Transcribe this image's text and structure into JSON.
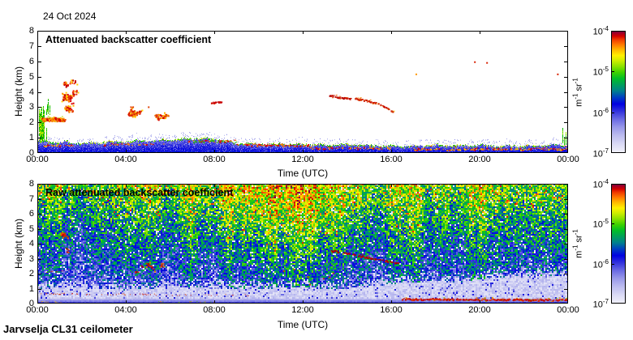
{
  "header": {
    "date_label": "24 Oct 2024"
  },
  "footer": {
    "instrument_label": "Jarvselja CL31 ceilometer"
  },
  "colorbar": {
    "unit_segments": [
      {
        "text": "m"
      },
      {
        "sup": "-1"
      },
      {
        "text": " sr"
      },
      {
        "sup": "-1"
      }
    ],
    "ticks": [
      {
        "base": "10",
        "exp": "-4"
      },
      {
        "base": "10",
        "exp": "-5"
      },
      {
        "base": "10",
        "exp": "-6"
      },
      {
        "base": "10",
        "exp": "-7"
      }
    ],
    "stops": [
      [
        0.0,
        "#F2F2FA"
      ],
      [
        0.07,
        "#DADAF5"
      ],
      [
        0.14,
        "#BCBCEF"
      ],
      [
        0.21,
        "#9898E9"
      ],
      [
        0.28,
        "#6666E3"
      ],
      [
        0.34,
        "#3232DD"
      ],
      [
        0.4,
        "#0000E1"
      ],
      [
        0.46,
        "#0046BE"
      ],
      [
        0.51,
        "#00828C"
      ],
      [
        0.56,
        "#00A05A"
      ],
      [
        0.61,
        "#00BE28"
      ],
      [
        0.66,
        "#3CD200"
      ],
      [
        0.71,
        "#8CE200"
      ],
      [
        0.76,
        "#D2EE00"
      ],
      [
        0.8,
        "#FFF000"
      ],
      [
        0.85,
        "#FFB400"
      ],
      [
        0.89,
        "#FF7800"
      ],
      [
        0.93,
        "#F03C00"
      ],
      [
        0.96,
        "#D20000"
      ],
      [
        0.985,
        "#A00028"
      ],
      [
        1.0,
        "#6E0046"
      ]
    ]
  },
  "chart_data": [
    {
      "type": "heatmap",
      "title": "Attenuated backscatter coefficient",
      "xlabel": "Time (UTC)",
      "ylabel": "Height (km)",
      "x_ticks": [
        "00:00",
        "04:00",
        "08:00",
        "12:00",
        "16:00",
        "20:00",
        "00:00"
      ],
      "x_tick_hours": [
        0,
        4,
        8,
        12,
        16,
        20,
        24
      ],
      "y_ticks": [
        0,
        1,
        2,
        3,
        4,
        5,
        6,
        7,
        8
      ],
      "xlim_hours": [
        0,
        24
      ],
      "ylim_km": [
        0,
        8
      ],
      "scale": "log",
      "value_range": [
        "1e-7",
        "1e-4"
      ],
      "unit": "m-1 sr-1",
      "background": "#ffffff",
      "boundary_layer_top_km": [
        0.75,
        0.7,
        0.65,
        0.7,
        0.75,
        0.8,
        0.85,
        0.95,
        0.9,
        0.62,
        0.6,
        0.55,
        0.55,
        0.5,
        0.55,
        0.5,
        0.45,
        0.45,
        0.5,
        0.45,
        0.5,
        0.45,
        0.45,
        0.5,
        0.55
      ],
      "cap_palette": [
        "#00B400",
        "#2DC800",
        "#7CD800",
        "#CCE400"
      ],
      "bl_streaks": [
        {
          "t": [
            0.25,
            1.6
          ],
          "h": 0.52,
          "density": 0.5,
          "palette": [
            "#FF8000",
            "#E00000",
            "#FFD000"
          ]
        },
        {
          "t": [
            3.0,
            5.7
          ],
          "h": 0.58,
          "density": 0.3,
          "palette": [
            "#FF9000",
            "#D80000",
            "#FFC800"
          ]
        },
        {
          "t": [
            6.8,
            9.0
          ],
          "h": 0.8,
          "density": 0.55,
          "palette": [
            "#E00000",
            "#FF8000",
            "#30C000"
          ]
        },
        {
          "t": [
            9.0,
            12.3
          ],
          "h": 0.55,
          "density": 0.5,
          "palette": [
            "#E00000",
            "#FF7000"
          ]
        },
        {
          "t": [
            12.3,
            16.2
          ],
          "h": 0.34,
          "density": 0.45,
          "palette": [
            "#E00000",
            "#FF9000"
          ]
        },
        {
          "t": [
            17.0,
            23.95
          ],
          "h": 0.28,
          "density": 0.55,
          "palette": [
            "#E00000",
            "#FF8000",
            "#FFD000"
          ]
        }
      ],
      "features": [
        {
          "kind": "vstreaks",
          "t": [
            0.0,
            0.4
          ],
          "h": [
            0.7,
            3.1
          ],
          "n": 22,
          "palette": [
            "#00A800",
            "#20C800",
            "#70DC00",
            "#C8E800"
          ],
          "seed": 11
        },
        {
          "kind": "vstreaks",
          "t": [
            0.37,
            0.62
          ],
          "h": [
            2.5,
            3.6
          ],
          "n": 5,
          "palette": [
            "#00B400",
            "#60D400"
          ],
          "seed": 15
        },
        {
          "kind": "band",
          "t": [
            0.18,
            1.28
          ],
          "h": [
            1.95,
            2.5
          ],
          "n": 130,
          "core": [
            "#FFA000",
            "#F06000",
            "#D80000"
          ],
          "fringe": [
            "#FFD000",
            "#A8E000"
          ],
          "seed": 12
        },
        {
          "kind": "cluster",
          "t": [
            1.15,
            1.75
          ],
          "h": [
            3.4,
            4.8
          ],
          "n": 62,
          "core": [
            "#D80000",
            "#C00000",
            "#F03000"
          ],
          "fringe": [
            "#FF9000",
            "#FFD000"
          ],
          "seed": 13
        },
        {
          "kind": "cluster",
          "t": [
            1.2,
            1.6
          ],
          "h": [
            2.7,
            3.3
          ],
          "n": 26,
          "core": [
            "#E85000",
            "#D80000"
          ],
          "fringe": [
            "#FFB000"
          ],
          "seed": 14
        },
        {
          "kind": "cluster",
          "t": [
            4.0,
            5.0
          ],
          "h": [
            2.5,
            3.05
          ],
          "n": 46,
          "core": [
            "#E04000",
            "#D80000"
          ],
          "fringe": [
            "#FFA000",
            "#FFE000"
          ],
          "seed": 16
        },
        {
          "kind": "cluster",
          "t": [
            5.0,
            5.9
          ],
          "h": [
            2.15,
            2.55
          ],
          "n": 26,
          "core": [
            "#E86000",
            "#D80000"
          ],
          "fringe": [
            "#FFB000"
          ],
          "seed": 17
        },
        {
          "kind": "blobline",
          "t": [
            7.85,
            8.3
          ],
          "h": [
            3.3,
            3.35
          ],
          "core": [
            "#C80000"
          ],
          "fringe": [
            "#F05000"
          ],
          "density": 0.8,
          "size": 2,
          "seed": 18
        },
        {
          "kind": "blobline",
          "t": [
            13.2,
            14.15
          ],
          "h": [
            3.8,
            3.55
          ],
          "core": [
            "#C81400",
            "#B40000"
          ],
          "fringe": [
            "#F06000"
          ],
          "density": 0.85,
          "size": 2,
          "seed": 19
        },
        {
          "kind": "blobline",
          "t": [
            14.35,
            15.4
          ],
          "h": [
            3.6,
            3.3
          ],
          "core": [
            "#C81400",
            "#D83000"
          ],
          "fringe": [
            "#F08000"
          ],
          "density": 0.8,
          "size": 2,
          "seed": 20
        },
        {
          "kind": "blobline",
          "t": [
            15.5,
            16.05
          ],
          "h": [
            3.2,
            2.75
          ],
          "core": [
            "#D03000",
            "#C80000"
          ],
          "fringe": [
            "#FFA000",
            "#FFE000"
          ],
          "density": 0.75,
          "size": 2,
          "seed": 21
        },
        {
          "kind": "dot",
          "t": 17.1,
          "h": 5.2,
          "colors": [
            "#FF9800"
          ]
        },
        {
          "kind": "dot",
          "t": 19.75,
          "h": 6.0,
          "colors": [
            "#D82000"
          ]
        },
        {
          "kind": "dot",
          "t": 20.3,
          "h": 5.95,
          "colors": [
            "#D82000"
          ]
        },
        {
          "kind": "dot",
          "t": 23.5,
          "h": 5.2,
          "colors": [
            "#D82000"
          ]
        },
        {
          "kind": "vstreaks",
          "t": [
            23.7,
            24.0
          ],
          "h": [
            0.6,
            1.8
          ],
          "n": 8,
          "palette": [
            "#00B400",
            "#40CC00",
            "#A0E000"
          ],
          "seed": 22
        }
      ]
    },
    {
      "type": "heatmap",
      "title": "Raw attenuated backscatter coefficient",
      "xlabel": "Time (UTC)",
      "ylabel": "Height (km)",
      "x_ticks": [
        "00:00",
        "04:00",
        "08:00",
        "12:00",
        "16:00",
        "20:00",
        "00:00"
      ],
      "x_tick_hours": [
        0,
        4,
        8,
        12,
        16,
        20,
        24
      ],
      "y_ticks": [
        0,
        1,
        2,
        3,
        4,
        5,
        6,
        7,
        8
      ],
      "xlim_hours": [
        0,
        24
      ],
      "ylim_km": [
        0,
        8
      ],
      "scale": "log",
      "value_range": [
        "1e-7",
        "1e-4"
      ],
      "unit": "m-1 sr-1",
      "noise": {
        "seed": 77,
        "cell": 2,
        "white_band": {
          "bottom_km": 0.36,
          "top_base_km": 1.05,
          "top_slope_per_h": 0.085,
          "slope_start_h": 13
        },
        "solar": {
          "center_h": 10.5,
          "sigma_h": 4.2,
          "gain_base": 0.04,
          "gain_per_km": 0.012
        },
        "base0": 0.3,
        "base_per_km": 0.048,
        "spread": 0.36,
        "dropout_white": 0.05
      },
      "echoes": [
        {
          "kind": "dotline",
          "t": [
            0.3,
            1.4
          ],
          "h": [
            2.1,
            2.25
          ],
          "density": 0.35,
          "core": [
            "#C00000",
            "#E03000"
          ],
          "seed": 31
        },
        {
          "kind": "cluster",
          "t": [
            1.05,
            1.6
          ],
          "h": [
            3.4,
            4.8
          ],
          "n": 16,
          "core": [
            "#C00000",
            "#D82000"
          ],
          "fringe": [
            "#E86000"
          ],
          "seed": 32
        },
        {
          "kind": "cluster",
          "t": [
            4.3,
            5.6
          ],
          "h": [
            2.15,
            2.9
          ],
          "n": 20,
          "core": [
            "#C03000",
            "#B40000"
          ],
          "fringe": [
            "#E87000"
          ],
          "seed": 33
        },
        {
          "kind": "blobline",
          "t": [
            13.2,
            16.3
          ],
          "h": [
            3.6,
            2.72
          ],
          "core": [
            "#A80000",
            "#C00000"
          ],
          "fringe": [
            "#D84000"
          ],
          "density": 0.55,
          "size": 2,
          "seed": 34
        },
        {
          "kind": "dotline",
          "t": [
            0.15,
            9.6
          ],
          "h": [
            0.68,
            0.58
          ],
          "density": 0.22,
          "core": [
            "#C00000",
            "#D84000"
          ],
          "seed": 35
        },
        {
          "kind": "blobline",
          "t": [
            16.4,
            23.98
          ],
          "h": [
            0.33,
            0.28
          ],
          "core": [
            "#C00000",
            "#D82000"
          ],
          "fringe": [
            "#F0A000",
            "#80C800"
          ],
          "density": 0.8,
          "size": 2,
          "seed": 36
        },
        {
          "kind": "dotline",
          "t": [
            0.1,
            1.3
          ],
          "h": [
            0.12,
            0.1
          ],
          "density": 0.3,
          "core": [
            "#F09000",
            "#FFD000"
          ],
          "seed": 37
        },
        {
          "kind": "dotline",
          "t": [
            5.4,
            8.2
          ],
          "h": [
            0.12,
            0.1
          ],
          "density": 0.25,
          "core": [
            "#F09000",
            "#60C800"
          ],
          "seed": 38
        },
        {
          "kind": "dots",
          "t": [
            10.8,
            13.6
          ],
          "h": [
            0.9,
            2.4
          ],
          "n": 7,
          "core": [
            "#C84000"
          ],
          "seed": 39
        }
      ]
    }
  ]
}
